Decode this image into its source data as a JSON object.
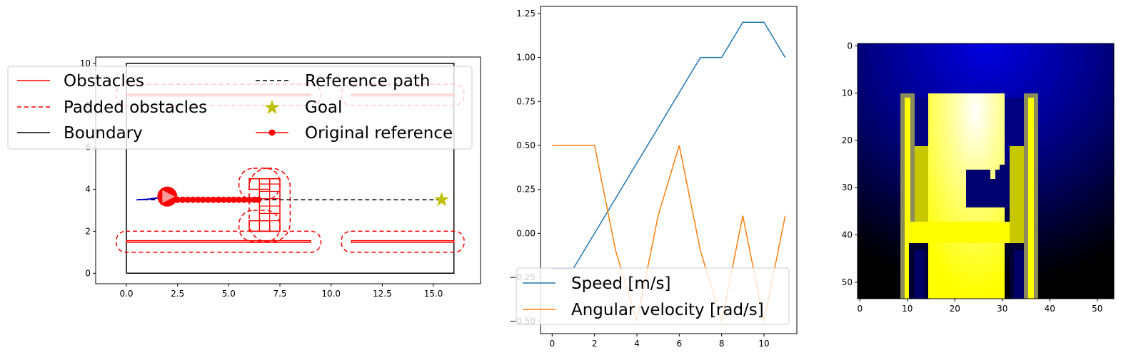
{
  "chart_data": [
    {
      "type": "line",
      "panel": "map",
      "xlim": [
        -1.5,
        17.3
      ],
      "ylim": [
        -0.5,
        10.3
      ],
      "xticks": [
        0.0,
        2.5,
        5.0,
        7.5,
        10.0,
        12.5,
        15.0
      ],
      "xtick_labels": [
        "0.0",
        "2.5",
        "5.0",
        "7.5",
        "10.0",
        "12.5",
        "15.0"
      ],
      "yticks": [
        0,
        2,
        4,
        6,
        8,
        10
      ],
      "ytick_labels": [
        "0",
        "2",
        "4",
        "6",
        "8",
        "10"
      ],
      "legend": {
        "placement": "upper-left",
        "entries": [
          {
            "label": "Obstacles",
            "style": "solid",
            "color": "#ff0000"
          },
          {
            "label": "Reference path",
            "style": "dashed",
            "color": "#000000"
          },
          {
            "label": "Padded obstacles",
            "style": "dashed",
            "color": "#ff0000"
          },
          {
            "label": "Goal",
            "style": "star",
            "color": "#bfbf00"
          },
          {
            "label": "Boundary",
            "style": "solid",
            "color": "#000000"
          },
          {
            "label": "Original reference",
            "style": "dot-line",
            "color": "#ff0000"
          }
        ]
      },
      "boundary": [
        [
          0,
          0
        ],
        [
          16,
          0
        ],
        [
          16,
          10
        ],
        [
          0,
          10
        ],
        [
          0,
          0
        ]
      ],
      "obstacles": [
        [
          [
            0,
            1.47
          ],
          [
            9,
            1.47
          ],
          [
            9,
            1.55
          ],
          [
            0,
            1.55
          ]
        ],
        [
          [
            11,
            1.47
          ],
          [
            16,
            1.47
          ],
          [
            16,
            1.55
          ],
          [
            11,
            1.55
          ]
        ],
        [
          [
            0,
            8.45
          ],
          [
            9,
            8.45
          ],
          [
            9,
            8.53
          ],
          [
            0,
            8.53
          ]
        ],
        [
          [
            11,
            8.45
          ],
          [
            16,
            8.45
          ],
          [
            16,
            8.53
          ],
          [
            11,
            8.53
          ]
        ],
        [
          [
            6,
            2.0
          ],
          [
            7,
            2.0
          ],
          [
            7,
            2.5
          ],
          [
            6,
            2.5
          ]
        ],
        [
          [
            6,
            4.0
          ],
          [
            7,
            4.0
          ],
          [
            7,
            4.5
          ],
          [
            6,
            4.5
          ]
        ],
        [
          [
            6.5,
            2.0
          ],
          [
            7.5,
            2.0
          ],
          [
            7.5,
            4.5
          ],
          [
            6.5,
            4.5
          ]
        ]
      ],
      "padded_obstacles": [
        {
          "x": [
            -0.5,
            9.5
          ],
          "y": [
            1.0,
            2.0
          ]
        },
        {
          "x": [
            10.5,
            16.5
          ],
          "y": [
            1.0,
            2.0
          ]
        },
        {
          "x": [
            -0.5,
            9.5
          ],
          "y": [
            8.0,
            9.0
          ]
        },
        {
          "x": [
            10.5,
            16.5
          ],
          "y": [
            8.0,
            9.0
          ]
        },
        {
          "x": [
            5.5,
            7.5
          ],
          "y": [
            1.5,
            3.0
          ]
        },
        {
          "x": [
            5.5,
            7.5
          ],
          "y": [
            3.5,
            5.0
          ]
        },
        {
          "x": [
            6.0,
            8.0
          ],
          "y": [
            1.5,
            5.0
          ]
        }
      ],
      "reference_path": {
        "x": [
          0.5,
          15.4
        ],
        "y": [
          3.5,
          3.5
        ]
      },
      "goal": {
        "x": 15.4,
        "y": 3.5
      },
      "original_reference": {
        "x": [
          2.0,
          2.25,
          2.5,
          2.75,
          3.0,
          3.25,
          3.5,
          3.75,
          4.0,
          4.25,
          4.5,
          4.75,
          5.0,
          5.25,
          5.5,
          5.75,
          6.0,
          6.25,
          6.45
        ],
        "y": [
          3.5,
          3.5,
          3.5,
          3.5,
          3.5,
          3.5,
          3.5,
          3.5,
          3.5,
          3.5,
          3.5,
          3.5,
          3.5,
          3.5,
          3.5,
          3.5,
          3.5,
          3.5,
          3.5
        ]
      },
      "trajectory": {
        "x": [
          0.5,
          1.0,
          1.5,
          2.0
        ],
        "y": [
          3.5,
          3.52,
          3.58,
          3.62
        ]
      },
      "robot": {
        "x": 2.0,
        "y": 3.65
      }
    },
    {
      "type": "line",
      "panel": "velocities",
      "xlim": [
        -0.55,
        11.55
      ],
      "ylim": [
        -0.57,
        1.29
      ],
      "xticks": [
        0,
        2,
        4,
        6,
        8,
        10
      ],
      "xtick_labels": [
        "0",
        "2",
        "4",
        "6",
        "8",
        "10"
      ],
      "yticks": [
        -0.5,
        -0.25,
        0.0,
        0.25,
        0.5,
        0.75,
        1.0,
        1.25
      ],
      "ytick_labels": [
        "−0.50",
        "−0.25",
        "0.00",
        "0.25",
        "0.50",
        "0.75",
        "1.00",
        "1.25"
      ],
      "legend": {
        "placement": "lower-left"
      },
      "x": [
        0,
        1,
        2,
        3,
        4,
        5,
        6,
        7,
        8,
        9,
        10,
        11
      ],
      "series": [
        {
          "name": "Speed [m/s]",
          "color": "#1f77b4",
          "values": [
            -0.2,
            -0.2,
            0.0,
            0.2,
            0.4,
            0.6,
            0.8,
            1.0,
            1.0,
            1.2,
            1.2,
            1.0
          ]
        },
        {
          "name": "Angular velocity [rad/s]",
          "color": "#ff7f0e",
          "values": [
            0.5,
            0.5,
            0.5,
            -0.1,
            -0.5,
            0.1,
            0.5,
            -0.1,
            -0.5,
            0.1,
            -0.5,
            0.1
          ]
        }
      ]
    },
    {
      "type": "heatmap",
      "panel": "cost-map",
      "grid_size": [
        54,
        54
      ],
      "xticks": [
        0,
        10,
        20,
        30,
        40,
        50
      ],
      "xtick_labels": [
        "0",
        "10",
        "20",
        "30",
        "40",
        "50"
      ],
      "yticks": [
        0,
        10,
        20,
        30,
        40,
        50
      ],
      "ytick_labels": [
        "0",
        "10",
        "20",
        "30",
        "40",
        "50"
      ],
      "colormap": "blue-to-yellow",
      "colors": {
        "low": "#000000",
        "mid": "#0000cc",
        "high": "#ffff00",
        "peak": "#ffffff"
      }
    }
  ]
}
